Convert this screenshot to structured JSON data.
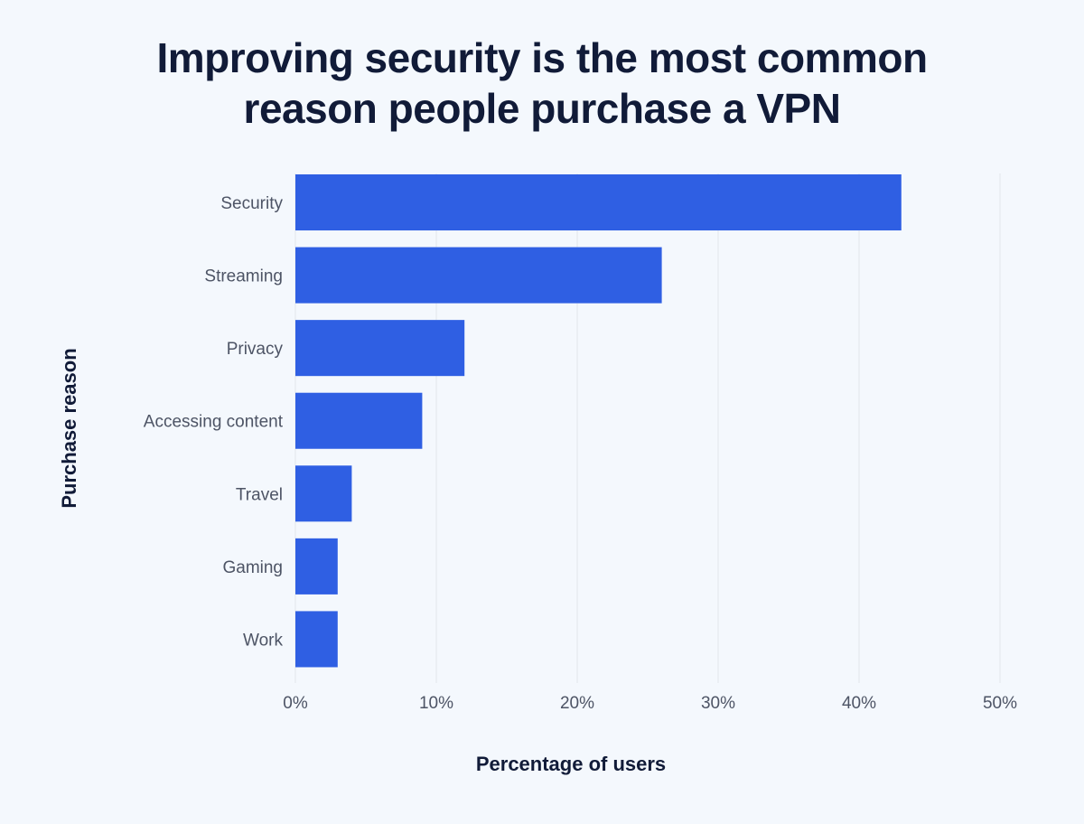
{
  "chart_data": {
    "type": "bar",
    "orientation": "horizontal",
    "title": "Improving security is the most common reason people purchase a VPN",
    "xlabel": "Percentage of users",
    "ylabel": "Purchase reason",
    "categories": [
      "Security",
      "Streaming",
      "Privacy",
      "Accessing content",
      "Travel",
      "Gaming",
      "Work"
    ],
    "values": [
      43,
      26,
      12,
      9,
      4,
      3,
      3
    ],
    "x_ticks": [
      "0%",
      "10%",
      "20%",
      "30%",
      "40%",
      "50%"
    ],
    "xlim": [
      0,
      50
    ],
    "grid": "vertical",
    "legend": "none",
    "bar_color": "#2f5fe3",
    "grid_color": "#e2e6ec"
  }
}
